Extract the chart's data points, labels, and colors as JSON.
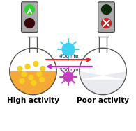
{
  "title_left": "High activity",
  "title_right": "Poor activity",
  "arrow_right_text": "466 nm",
  "arrow_left_text": "366 nm",
  "flask_left_fill": "#F4A020",
  "flask_right_fill": "#E8E8F0",
  "dot_color": "#F5D020",
  "sun_blue_color": "#40D0F0",
  "sun_purple_color": "#C040C0",
  "arrow_right_color": "#E82020",
  "arrow_left_color": "#CC20CC",
  "green_light_on": "#30D030",
  "green_light_off": "#0A2A0A",
  "red_light_on": "#CC2020",
  "red_light_off": "#3A0808",
  "font_size_label": 7.5,
  "font_size_arrow": 5.2,
  "background": "#FFFFFF"
}
